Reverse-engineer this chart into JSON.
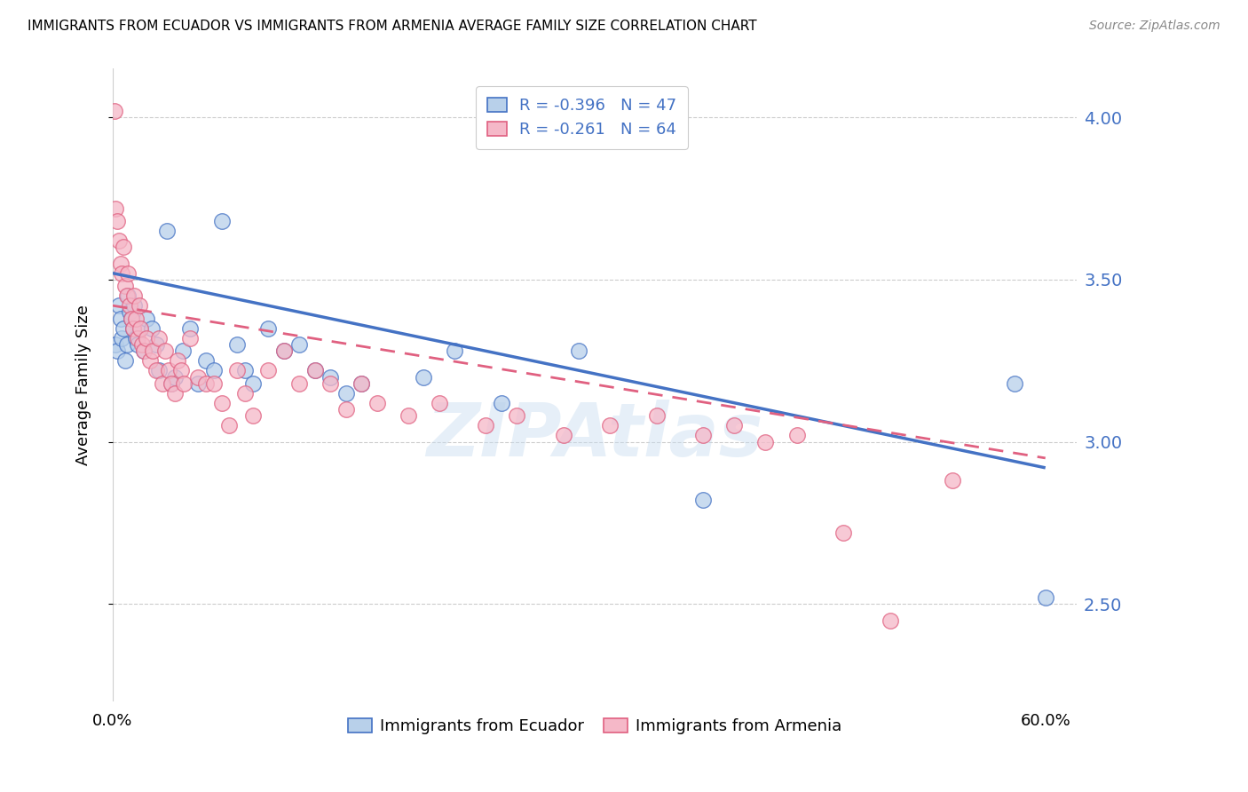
{
  "title": "IMMIGRANTS FROM ECUADOR VS IMMIGRANTS FROM ARMENIA AVERAGE FAMILY SIZE CORRELATION CHART",
  "source": "Source: ZipAtlas.com",
  "ylabel": "Average Family Size",
  "R_ecuador": -0.396,
  "N_ecuador": 47,
  "R_armenia": -0.261,
  "N_armenia": 64,
  "watermark": "ZIPAtlas",
  "yticks": [
    2.5,
    3.0,
    3.5,
    4.0
  ],
  "ylim": [
    2.2,
    4.15
  ],
  "xlim": [
    0.0,
    0.62
  ],
  "color_ecuador": "#b8d0ea",
  "color_armenia": "#f5b8c8",
  "line_color_ecuador": "#4472c4",
  "line_color_armenia": "#e06080",
  "background_color": "#ffffff",
  "ecuador_x": [
    0.002,
    0.003,
    0.004,
    0.005,
    0.006,
    0.007,
    0.008,
    0.009,
    0.01,
    0.011,
    0.012,
    0.013,
    0.014,
    0.015,
    0.016,
    0.018,
    0.02,
    0.022,
    0.025,
    0.028,
    0.03,
    0.035,
    0.038,
    0.04,
    0.045,
    0.05,
    0.055,
    0.06,
    0.065,
    0.07,
    0.08,
    0.085,
    0.09,
    0.1,
    0.11,
    0.12,
    0.13,
    0.14,
    0.15,
    0.16,
    0.2,
    0.22,
    0.25,
    0.3,
    0.38,
    0.58,
    0.6
  ],
  "ecuador_y": [
    3.3,
    3.28,
    3.42,
    3.38,
    3.32,
    3.35,
    3.25,
    3.3,
    3.45,
    3.4,
    3.38,
    3.35,
    3.42,
    3.32,
    3.3,
    3.35,
    3.28,
    3.38,
    3.35,
    3.3,
    3.22,
    3.65,
    3.18,
    3.2,
    3.28,
    3.35,
    3.18,
    3.25,
    3.22,
    3.68,
    3.3,
    3.22,
    3.18,
    3.35,
    3.28,
    3.3,
    3.22,
    3.2,
    3.15,
    3.18,
    3.2,
    3.28,
    3.12,
    3.28,
    2.82,
    3.18,
    2.52
  ],
  "armenia_x": [
    0.001,
    0.002,
    0.003,
    0.004,
    0.005,
    0.006,
    0.007,
    0.008,
    0.009,
    0.01,
    0.011,
    0.012,
    0.013,
    0.014,
    0.015,
    0.016,
    0.017,
    0.018,
    0.019,
    0.02,
    0.022,
    0.024,
    0.026,
    0.028,
    0.03,
    0.032,
    0.034,
    0.036,
    0.038,
    0.04,
    0.042,
    0.044,
    0.046,
    0.05,
    0.055,
    0.06,
    0.065,
    0.07,
    0.075,
    0.08,
    0.085,
    0.09,
    0.1,
    0.11,
    0.12,
    0.13,
    0.14,
    0.15,
    0.16,
    0.17,
    0.19,
    0.21,
    0.24,
    0.26,
    0.29,
    0.32,
    0.35,
    0.38,
    0.4,
    0.42,
    0.44,
    0.47,
    0.5,
    0.54
  ],
  "armenia_y": [
    4.02,
    3.72,
    3.68,
    3.62,
    3.55,
    3.52,
    3.6,
    3.48,
    3.45,
    3.52,
    3.42,
    3.38,
    3.35,
    3.45,
    3.38,
    3.32,
    3.42,
    3.35,
    3.3,
    3.28,
    3.32,
    3.25,
    3.28,
    3.22,
    3.32,
    3.18,
    3.28,
    3.22,
    3.18,
    3.15,
    3.25,
    3.22,
    3.18,
    3.32,
    3.2,
    3.18,
    3.18,
    3.12,
    3.05,
    3.22,
    3.15,
    3.08,
    3.22,
    3.28,
    3.18,
    3.22,
    3.18,
    3.1,
    3.18,
    3.12,
    3.08,
    3.12,
    3.05,
    3.08,
    3.02,
    3.05,
    3.08,
    3.02,
    3.05,
    3.0,
    3.02,
    2.72,
    2.45,
    2.88
  ],
  "ecuador_line_x": [
    0.0,
    0.6
  ],
  "ecuador_line_y": [
    3.52,
    2.92
  ],
  "armenia_line_x": [
    0.0,
    0.6
  ],
  "armenia_line_y": [
    3.42,
    2.95
  ]
}
